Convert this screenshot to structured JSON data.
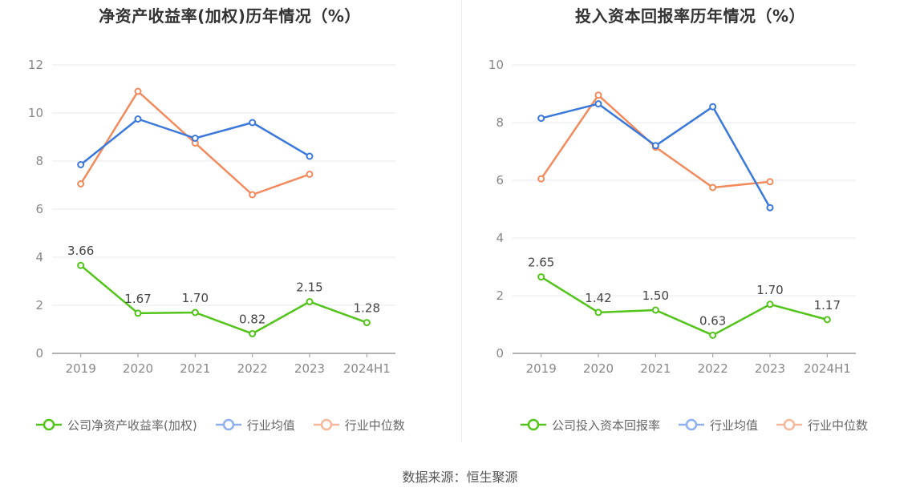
{
  "source_text": "数据来源：恒生聚源",
  "chart_data": [
    {
      "type": "line",
      "title": "净资产收益率(加权)历年情况（%）",
      "categories": [
        "2019",
        "2020",
        "2021",
        "2022",
        "2023",
        "2024H1"
      ],
      "ylim": [
        0,
        12
      ],
      "yticks": [
        0,
        2,
        4,
        6,
        8,
        10,
        12
      ],
      "grid": true,
      "legend_position": "bottom",
      "series": [
        {
          "name": "公司净资产收益率(加权)",
          "color": "#52c41a",
          "values": [
            3.66,
            1.67,
            1.7,
            0.82,
            2.15,
            1.28
          ],
          "show_labels": true
        },
        {
          "name": "行业均值",
          "color": "#3a78dc",
          "legend_color": "#8fb0ee",
          "values": [
            7.85,
            9.75,
            8.95,
            9.6,
            8.2,
            null
          ],
          "show_labels": false
        },
        {
          "name": "行业中位数",
          "color": "#f28a5c",
          "legend_color": "#f6b79b",
          "values": [
            7.05,
            10.9,
            8.75,
            6.6,
            7.45,
            null
          ],
          "show_labels": false
        }
      ],
      "data_labels": [
        "3.66",
        "1.67",
        "1.70",
        "0.82",
        "2.15",
        "1.28"
      ]
    },
    {
      "type": "line",
      "title": "投入资本回报率历年情况（%）",
      "categories": [
        "2019",
        "2020",
        "2021",
        "2022",
        "2023",
        "2024H1"
      ],
      "ylim": [
        0,
        10
      ],
      "yticks": [
        0,
        2,
        4,
        6,
        8,
        10
      ],
      "grid": true,
      "legend_position": "bottom",
      "series": [
        {
          "name": "公司投入资本回报率",
          "color": "#52c41a",
          "values": [
            2.65,
            1.42,
            1.5,
            0.63,
            1.7,
            1.17
          ],
          "show_labels": true
        },
        {
          "name": "行业均值",
          "color": "#3a78dc",
          "legend_color": "#8fb0ee",
          "values": [
            8.15,
            8.65,
            7.2,
            8.55,
            5.05,
            null
          ],
          "show_labels": false
        },
        {
          "name": "行业中位数",
          "color": "#f28a5c",
          "legend_color": "#f6b79b",
          "values": [
            6.05,
            8.95,
            7.15,
            5.75,
            5.95,
            null
          ],
          "show_labels": false
        }
      ],
      "data_labels": [
        "2.65",
        "1.42",
        "1.50",
        "0.63",
        "1.70",
        "1.17"
      ]
    }
  ]
}
